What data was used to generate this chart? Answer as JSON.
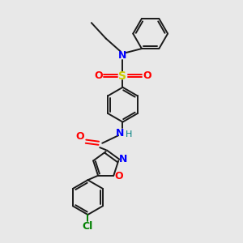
{
  "background_color": "#e8e8e8",
  "bond_color": "#1a1a1a",
  "n_color": "#0000ff",
  "o_color": "#ff0000",
  "s_color": "#cccc00",
  "cl_color": "#008000",
  "h_color": "#008080",
  "figsize": [
    3.0,
    3.0
  ],
  "dpi": 100,
  "xlim": [
    0,
    10
  ],
  "ylim": [
    0,
    10
  ]
}
